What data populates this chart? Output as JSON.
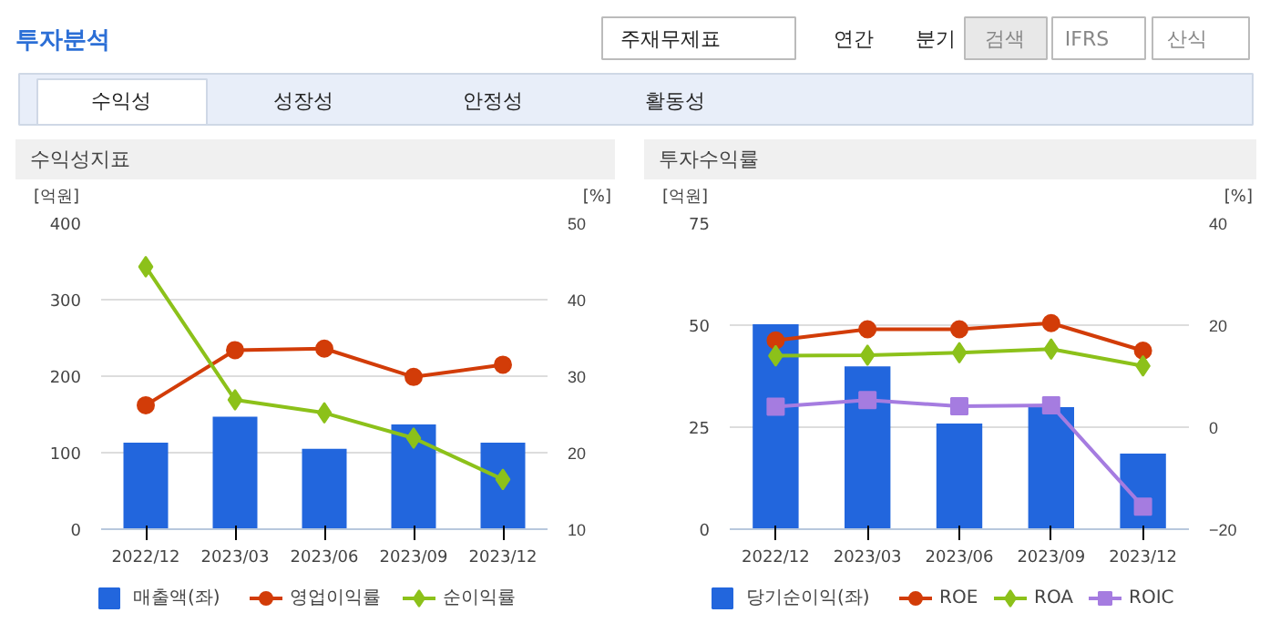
{
  "chart_data": [
    {
      "type": "other",
      "title": "투자분석",
      "annotations": [
        "주재무제표",
        "연간",
        "분기",
        "검색",
        "IFRS",
        "산식",
        "수익성",
        "성장성",
        "안정성",
        "활동성"
      ]
    },
    {
      "type": "bar",
      "title": "수익성지표",
      "ylabel": "[억원]",
      "y2label": "[%]",
      "categories": [
        "2022/12",
        "2023/03",
        "2023/06",
        "2023/09",
        "2023/12"
      ],
      "ylim": [
        0,
        400
      ],
      "yticks": [
        0,
        100,
        200,
        300,
        400
      ],
      "y2lim": [
        10,
        50
      ],
      "y2ticks": [
        10,
        20,
        30,
        40,
        50
      ],
      "grid": "y",
      "legend": "bottom",
      "series": [
        {
          "name": "매출액(좌)",
          "color": "#2266dd",
          "values": [
            113,
            147,
            105,
            137,
            113
          ]
        },
        {
          "name": "영업이익률",
          "type": "line",
          "axis": "y2",
          "marker": "circle",
          "color": "#d23c08",
          "values": [
            26.2,
            33.4,
            33.6,
            29.9,
            31.5
          ]
        },
        {
          "name": "순이익률",
          "type": "line",
          "axis": "y2",
          "marker": "diamond",
          "color": "#8cc11a",
          "values": [
            44.3,
            26.9,
            25.2,
            21.9,
            16.5
          ]
        }
      ]
    },
    {
      "type": "bar",
      "title": "투자수익률",
      "ylabel": "[억원]",
      "y2label": "[%]",
      "categories": [
        "2022/12",
        "2023/03",
        "2023/06",
        "2023/09",
        "2023/12"
      ],
      "ylim": [
        0,
        75
      ],
      "yticks": [
        0,
        25,
        50,
        75
      ],
      "y2lim": [
        -20,
        40
      ],
      "y2ticks": [
        -20,
        0,
        20,
        40
      ],
      "grid": "y",
      "legend": "bottom",
      "series": [
        {
          "name": "당기순이익(좌)",
          "color": "#2266dd",
          "values": [
            50.2,
            39.9,
            25.9,
            29.9,
            18.5
          ]
        },
        {
          "name": "ROE",
          "type": "line",
          "axis": "y2",
          "marker": "circle",
          "color": "#d23c08",
          "values": [
            17.0,
            19.2,
            19.2,
            20.4,
            15.0
          ]
        },
        {
          "name": "ROA",
          "type": "line",
          "axis": "y2",
          "marker": "diamond",
          "color": "#8cc11a",
          "values": [
            14.0,
            14.1,
            14.6,
            15.3,
            12.0
          ]
        },
        {
          "name": "ROIC",
          "type": "line",
          "axis": "y2",
          "marker": "square",
          "color": "#a57ce0",
          "values": [
            4.0,
            5.3,
            4.1,
            4.3,
            -15.6
          ]
        }
      ]
    }
  ]
}
